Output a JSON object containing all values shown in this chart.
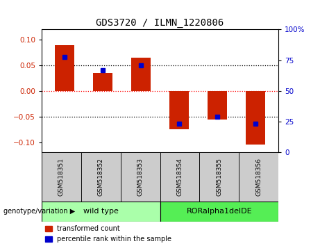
{
  "title": "GDS3720 / ILMN_1220806",
  "samples": [
    "GSM518351",
    "GSM518352",
    "GSM518353",
    "GSM518354",
    "GSM518355",
    "GSM518356"
  ],
  "red_values": [
    0.09,
    0.035,
    0.065,
    -0.075,
    -0.055,
    -0.105
  ],
  "blue_values_pct": [
    83,
    70,
    75,
    18,
    25,
    18
  ],
  "ylim_left": [
    -0.12,
    0.12
  ],
  "ylim_right": [
    0,
    100
  ],
  "yticks_left": [
    -0.1,
    -0.05,
    0,
    0.05,
    0.1
  ],
  "yticks_right": [
    0,
    25,
    50,
    75,
    100
  ],
  "hlines_dotted": [
    -0.05,
    0.05
  ],
  "hline_red_dotted": 0,
  "red_color": "#cc2200",
  "blue_color": "#0000cc",
  "bar_width": 0.5,
  "background_color": "#ffffff",
  "legend_red": "transformed count",
  "legend_blue": "percentile rank within the sample",
  "group1_label": "wild type",
  "group1_color": "#aaffaa",
  "group2_label": "RORalpha1delDE",
  "group2_color": "#55ee55",
  "sample_cell_color": "#cccccc",
  "group_annotation": "genotype/variation"
}
